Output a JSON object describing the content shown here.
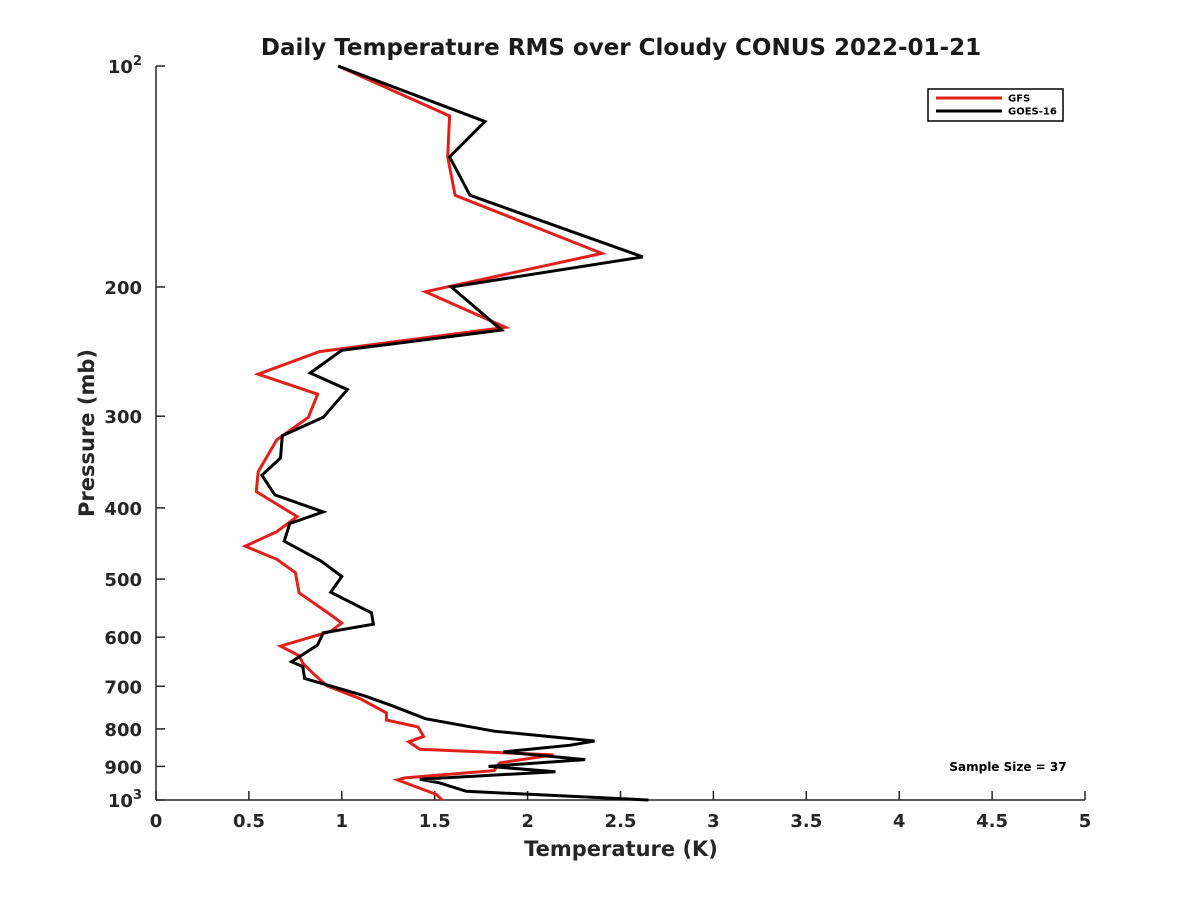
{
  "chart_data": {
    "type": "line",
    "title": "Daily Temperature RMS over Cloudy CONUS 2022-01-21",
    "xlabel": "Temperature (K)",
    "ylabel": "Pressure (mb)",
    "xlim": [
      0,
      5
    ],
    "ylim": [
      100,
      1000
    ],
    "yscale": "log",
    "y_reversed": true,
    "grid": false,
    "legend_position": "top-right",
    "x_ticks": [
      {
        "value": 0,
        "label": "0"
      },
      {
        "value": 0.5,
        "label": "0.5"
      },
      {
        "value": 1,
        "label": "1"
      },
      {
        "value": 1.5,
        "label": "1.5"
      },
      {
        "value": 2,
        "label": "2"
      },
      {
        "value": 2.5,
        "label": "2.5"
      },
      {
        "value": 3,
        "label": "3"
      },
      {
        "value": 3.5,
        "label": "3.5"
      },
      {
        "value": 4,
        "label": "4"
      },
      {
        "value": 4.5,
        "label": "4.5"
      },
      {
        "value": 5,
        "label": "5"
      }
    ],
    "y_ticks": [
      {
        "value": 100,
        "label": "10",
        "exp": "2"
      },
      {
        "value": 200,
        "label": "200"
      },
      {
        "value": 300,
        "label": "300"
      },
      {
        "value": 400,
        "label": "400"
      },
      {
        "value": 500,
        "label": "500"
      },
      {
        "value": 600,
        "label": "600"
      },
      {
        "value": 700,
        "label": "700"
      },
      {
        "value": 800,
        "label": "800"
      },
      {
        "value": 900,
        "label": "900"
      },
      {
        "value": 1000,
        "label": "10",
        "exp": "3"
      }
    ],
    "annotation": "Sample Size = 37",
    "series": [
      {
        "name": "GFS",
        "color": "#e0201b",
        "points": [
          [
            0.98,
            100
          ],
          [
            1.58,
            117
          ],
          [
            1.57,
            133
          ],
          [
            1.61,
            150
          ],
          [
            2.4,
            180
          ],
          [
            1.45,
            203
          ],
          [
            1.88,
            227
          ],
          [
            0.88,
            245
          ],
          [
            0.55,
            263
          ],
          [
            0.87,
            280
          ],
          [
            0.82,
            301
          ],
          [
            0.65,
            323
          ],
          [
            0.55,
            357
          ],
          [
            0.54,
            380
          ],
          [
            0.76,
            411
          ],
          [
            0.65,
            431
          ],
          [
            0.48,
            451
          ],
          [
            0.65,
            470
          ],
          [
            0.75,
            490
          ],
          [
            0.77,
            522
          ],
          [
            0.93,
            557
          ],
          [
            1.0,
            574
          ],
          [
            0.94,
            589
          ],
          [
            0.67,
            617
          ],
          [
            0.77,
            636
          ],
          [
            0.79,
            651
          ],
          [
            0.85,
            674
          ],
          [
            0.92,
            699
          ],
          [
            1.1,
            728
          ],
          [
            1.24,
            761
          ],
          [
            1.24,
            778
          ],
          [
            1.41,
            795
          ],
          [
            1.44,
            819
          ],
          [
            1.36,
            833
          ],
          [
            1.42,
            853
          ],
          [
            2.14,
            868
          ],
          [
            1.85,
            890
          ],
          [
            1.82,
            912
          ],
          [
            1.34,
            933
          ],
          [
            1.3,
            939
          ],
          [
            1.51,
            983
          ],
          [
            1.54,
            1000
          ]
        ]
      },
      {
        "name": "GOES-16",
        "color": "#000000",
        "points": [
          [
            0.98,
            100
          ],
          [
            1.77,
            119
          ],
          [
            1.58,
            133
          ],
          [
            1.69,
            150
          ],
          [
            2.62,
            182
          ],
          [
            1.59,
            200
          ],
          [
            1.86,
            229
          ],
          [
            1.0,
            244
          ],
          [
            0.83,
            262
          ],
          [
            1.03,
            276
          ],
          [
            0.9,
            301
          ],
          [
            0.68,
            319
          ],
          [
            0.67,
            342
          ],
          [
            0.57,
            361
          ],
          [
            0.64,
            384
          ],
          [
            0.9,
            405
          ],
          [
            0.72,
            420
          ],
          [
            0.69,
            444
          ],
          [
            0.89,
            473
          ],
          [
            1.0,
            496
          ],
          [
            0.94,
            521
          ],
          [
            1.16,
            556
          ],
          [
            1.17,
            576
          ],
          [
            0.9,
            592
          ],
          [
            0.87,
            615
          ],
          [
            0.73,
            648
          ],
          [
            0.79,
            658
          ],
          [
            0.8,
            683
          ],
          [
            1.12,
            721
          ],
          [
            1.27,
            744
          ],
          [
            1.45,
            775
          ],
          [
            1.82,
            806
          ],
          [
            2.36,
            831
          ],
          [
            2.23,
            842
          ],
          [
            1.87,
            860
          ],
          [
            2.31,
            881
          ],
          [
            1.79,
            900
          ],
          [
            2.15,
            915
          ],
          [
            1.42,
            937
          ],
          [
            1.52,
            947
          ],
          [
            1.67,
            973
          ],
          [
            2.65,
            1000
          ]
        ]
      }
    ]
  }
}
